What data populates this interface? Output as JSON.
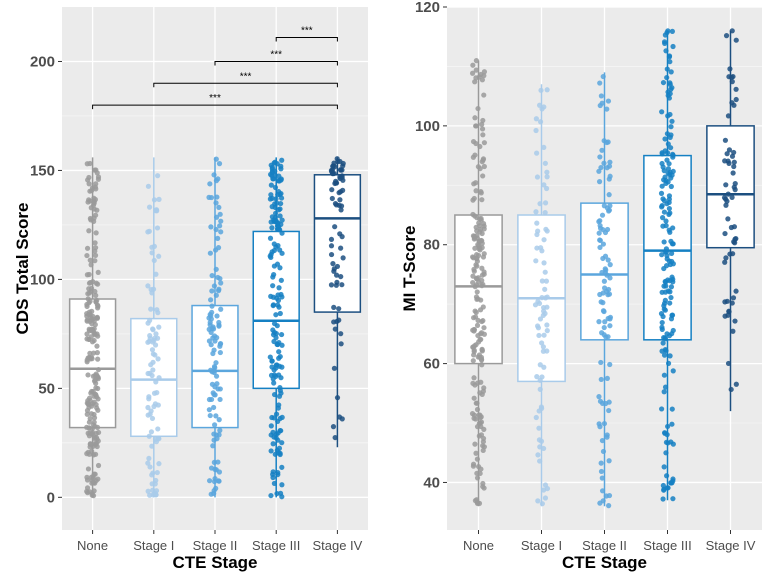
{
  "chart_data": [
    {
      "type": "boxplot",
      "xlabel": "CTE Stage",
      "ylabel": "CDS Total Score",
      "ylim": [
        -15,
        225
      ],
      "yticks": [
        0,
        50,
        100,
        150,
        200
      ],
      "grid": true,
      "categories": [
        "None",
        "Stage I",
        "Stage II",
        "Stage III",
        "Stage IV"
      ],
      "colors": [
        "#9a9a9a",
        "#a9cbea",
        "#5ba6dd",
        "#1580c3",
        "#1c4f80"
      ],
      "boxes": [
        {
          "min": 0,
          "q1": 32,
          "median": 59,
          "q3": 91,
          "max": 156
        },
        {
          "min": 0,
          "q1": 28,
          "median": 54,
          "q3": 82,
          "max": 156
        },
        {
          "min": 0,
          "q1": 32,
          "median": 58,
          "q3": 88,
          "max": 156
        },
        {
          "min": 0,
          "q1": 50,
          "median": 81,
          "q3": 122,
          "max": 156
        },
        {
          "min": 23,
          "q1": 85,
          "median": 128,
          "q3": 148,
          "max": 156
        }
      ],
      "significance": [
        {
          "from": "None",
          "to": "Stage IV",
          "y": 180,
          "label": "***"
        },
        {
          "from": "Stage I",
          "to": "Stage IV",
          "y": 190,
          "label": "***"
        },
        {
          "from": "Stage II",
          "to": "Stage IV",
          "y": 200,
          "label": "***"
        },
        {
          "from": "Stage III",
          "to": "Stage IV",
          "y": 211,
          "label": "***"
        }
      ]
    },
    {
      "type": "boxplot",
      "xlabel": "CTE Stage",
      "ylabel": "MI T-Score",
      "ylim": [
        32,
        120
      ],
      "yticks": [
        40,
        60,
        80,
        100,
        120
      ],
      "grid": true,
      "categories": [
        "None",
        "Stage I",
        "Stage II",
        "Stage III",
        "Stage IV"
      ],
      "colors": [
        "#9a9a9a",
        "#a9cbea",
        "#5ba6dd",
        "#1580c3",
        "#1c4f80"
      ],
      "boxes": [
        {
          "min": 36,
          "q1": 60,
          "median": 73,
          "q3": 85,
          "max": 111
        },
        {
          "min": 36,
          "q1": 57,
          "median": 71,
          "q3": 85,
          "max": 107
        },
        {
          "min": 36,
          "q1": 64,
          "median": 75,
          "q3": 87,
          "max": 109
        },
        {
          "min": 37,
          "q1": 64,
          "median": 79,
          "q3": 95,
          "max": 116
        },
        {
          "min": 52,
          "q1": 79.5,
          "median": 88.5,
          "q3": 100,
          "max": 116
        }
      ],
      "significance": []
    }
  ]
}
